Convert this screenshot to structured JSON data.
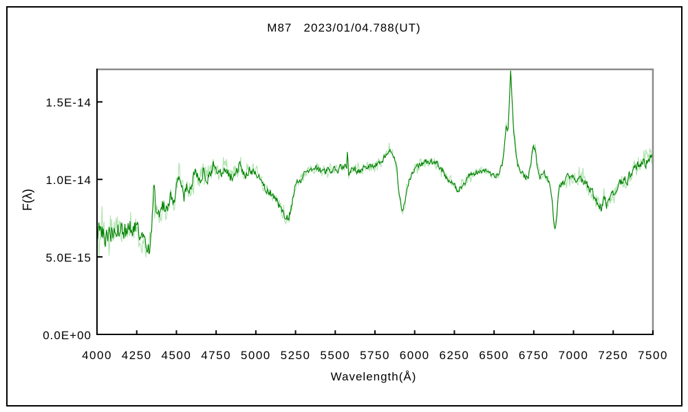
{
  "window": {
    "background_color": "#ffffff",
    "outer_border_color": "#000000"
  },
  "chart_data": {
    "type": "line",
    "title": "M87   2023/01/04.788(UT)",
    "xlabel": "Wavelength(Å)",
    "ylabel": "F(λ)",
    "grid": false,
    "legend": null,
    "xlim": [
      4000,
      7500
    ],
    "ylim_1e15": [
      0,
      17.1
    ],
    "x_ticks": [
      4000,
      4250,
      4500,
      4750,
      5000,
      5250,
      5500,
      5750,
      6000,
      6250,
      6500,
      6750,
      7000,
      7250,
      7500
    ],
    "y_ticks": [
      {
        "value_1e15": 0,
        "label": "0.0E+00"
      },
      {
        "value_1e15": 5,
        "label": "5.0E-15"
      },
      {
        "value_1e15": 10,
        "label": "1.0E-14"
      },
      {
        "value_1e15": 15,
        "label": "1.5E-14"
      }
    ],
    "line_color": "#008000",
    "noise_envelope_color": "#b2e4b2",
    "frame": {
      "left_bottom_color": "#000000",
      "top_right_color": "#8a8a8a"
    },
    "series": [
      {
        "name": "M87 optical spectrum",
        "flux_scale": "1e-15",
        "continuum_points": [
          [
            4000,
            6.6
          ],
          [
            4040,
            6.4
          ],
          [
            4080,
            6.6
          ],
          [
            4120,
            6.9
          ],
          [
            4150,
            7.0
          ],
          [
            4180,
            6.6
          ],
          [
            4210,
            6.8
          ],
          [
            4240,
            6.9
          ],
          [
            4265,
            6.4
          ],
          [
            4290,
            6.0
          ],
          [
            4312,
            5.6
          ],
          [
            4328,
            5.5
          ],
          [
            4345,
            7.0
          ],
          [
            4357,
            9.3
          ],
          [
            4372,
            8.1
          ],
          [
            4394,
            7.3
          ],
          [
            4420,
            8.4
          ],
          [
            4442,
            7.7
          ],
          [
            4464,
            8.8
          ],
          [
            4481,
            8.3
          ],
          [
            4507,
            10.1
          ],
          [
            4529,
            10.3
          ],
          [
            4546,
            8.7
          ],
          [
            4567,
            9.6
          ],
          [
            4593,
            9.3
          ],
          [
            4615,
            10.5
          ],
          [
            4645,
            9.9
          ],
          [
            4671,
            10.7
          ],
          [
            4697,
            10.1
          ],
          [
            4732,
            10.9
          ],
          [
            4766,
            10.3
          ],
          [
            4801,
            10.8
          ],
          [
            4836,
            10.1
          ],
          [
            4870,
            10.5
          ],
          [
            4905,
            10.9
          ],
          [
            4927,
            10.2
          ],
          [
            4957,
            10.7
          ],
          [
            4992,
            10.5
          ],
          [
            5022,
            10.2
          ],
          [
            5057,
            9.4
          ],
          [
            5090,
            9.2
          ],
          [
            5122,
            8.8
          ],
          [
            5150,
            8.3
          ],
          [
            5180,
            7.6
          ],
          [
            5205,
            7.4
          ],
          [
            5222,
            8.2
          ],
          [
            5243,
            9.3
          ],
          [
            5278,
            10.0
          ],
          [
            5310,
            10.4
          ],
          [
            5360,
            10.7
          ],
          [
            5425,
            10.5
          ],
          [
            5470,
            10.7
          ],
          [
            5512,
            10.6
          ],
          [
            5556,
            10.8
          ],
          [
            5572,
            10.9
          ],
          [
            5577,
            12.2
          ],
          [
            5583,
            10.4
          ],
          [
            5607,
            10.7
          ],
          [
            5650,
            10.6
          ],
          [
            5700,
            10.8
          ],
          [
            5750,
            10.9
          ],
          [
            5790,
            11.1
          ],
          [
            5815,
            11.6
          ],
          [
            5845,
            11.8
          ],
          [
            5872,
            11.6
          ],
          [
            5888,
            10.6
          ],
          [
            5905,
            8.8
          ],
          [
            5922,
            8.0
          ],
          [
            5938,
            8.4
          ],
          [
            5955,
            9.6
          ],
          [
            5980,
            10.5
          ],
          [
            6010,
            10.8
          ],
          [
            6055,
            11.0
          ],
          [
            6100,
            11.2
          ],
          [
            6140,
            11.0
          ],
          [
            6175,
            10.6
          ],
          [
            6210,
            10.0
          ],
          [
            6245,
            9.6
          ],
          [
            6270,
            9.3
          ],
          [
            6300,
            9.6
          ],
          [
            6340,
            10.2
          ],
          [
            6380,
            10.4
          ],
          [
            6420,
            10.6
          ],
          [
            6465,
            10.5
          ],
          [
            6500,
            10.1
          ],
          [
            6530,
            10.4
          ],
          [
            6552,
            11.0
          ],
          [
            6570,
            12.7
          ],
          [
            6577,
            13.6
          ],
          [
            6586,
            12.8
          ],
          [
            6595,
            14.8
          ],
          [
            6604,
            17.0
          ],
          [
            6613,
            15.3
          ],
          [
            6622,
            13.3
          ],
          [
            6634,
            12.1
          ],
          [
            6648,
            11.0
          ],
          [
            6665,
            10.5
          ],
          [
            6690,
            10.2
          ],
          [
            6716,
            10.1
          ],
          [
            6734,
            11.3
          ],
          [
            6747,
            12.1
          ],
          [
            6760,
            11.9
          ],
          [
            6773,
            10.8
          ],
          [
            6790,
            10.2
          ],
          [
            6820,
            10.3
          ],
          [
            6848,
            9.9
          ],
          [
            6864,
            8.9
          ],
          [
            6877,
            7.0
          ],
          [
            6885,
            6.6
          ],
          [
            6894,
            7.7
          ],
          [
            6907,
            9.3
          ],
          [
            6924,
            9.8
          ],
          [
            6950,
            10.0
          ],
          [
            6985,
            10.2
          ],
          [
            7020,
            10.1
          ],
          [
            7050,
            10.0
          ],
          [
            7080,
            9.7
          ],
          [
            7106,
            9.3
          ],
          [
            7132,
            8.9
          ],
          [
            7158,
            8.5
          ],
          [
            7175,
            8.2
          ],
          [
            7192,
            8.7
          ],
          [
            7210,
            8.4
          ],
          [
            7227,
            8.8
          ],
          [
            7245,
            9.0
          ],
          [
            7270,
            9.4
          ],
          [
            7297,
            9.7
          ],
          [
            7322,
            9.9
          ],
          [
            7350,
            10.2
          ],
          [
            7375,
            10.5
          ],
          [
            7400,
            10.8
          ],
          [
            7428,
            11.2
          ],
          [
            7452,
            11.0
          ],
          [
            7478,
            11.3
          ],
          [
            7500,
            11.2
          ]
        ]
      }
    ],
    "noise": {
      "amplitude_points": [
        [
          4000,
          0.75
        ],
        [
          4300,
          0.55
        ],
        [
          4600,
          0.42
        ],
        [
          4900,
          0.32
        ],
        [
          5200,
          0.26
        ],
        [
          5600,
          0.22
        ],
        [
          6200,
          0.22
        ],
        [
          6550,
          0.18
        ],
        [
          6700,
          0.2
        ],
        [
          7000,
          0.26
        ],
        [
          7250,
          0.32
        ],
        [
          7500,
          0.38
        ]
      ],
      "envelope_multiplier": 2.4,
      "seed": 987654321
    }
  }
}
